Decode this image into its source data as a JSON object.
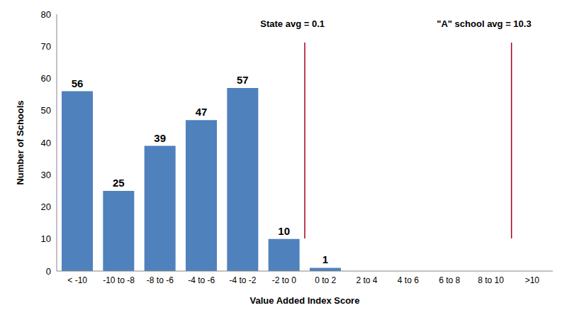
{
  "chart_data": {
    "type": "bar",
    "categories": [
      "< -10",
      "-10 to -8",
      "-8 to -6",
      "-4 to -6",
      "-4 to -2",
      "-2 to 0",
      "0 to 2",
      "2 to 4",
      "4 to 6",
      "6 to 8",
      "8 to 10",
      ">10"
    ],
    "values": [
      56,
      25,
      39,
      47,
      57,
      10,
      1,
      0,
      0,
      0,
      0,
      0
    ],
    "color": "#4f81bd",
    "ylim": [
      0,
      80
    ],
    "yticks": [
      0,
      10,
      20,
      30,
      40,
      50,
      60,
      70,
      80
    ],
    "xlabel": "Value Added Index Score",
    "ylabel": "Number of Schools",
    "data_labels": true,
    "grid": false,
    "annotations": [
      {
        "text": "State avg = 0.1",
        "category": "0 to 2",
        "color": "#a50021"
      },
      {
        "text": "\"A\" school avg = 10.3",
        "category": ">10",
        "color": "#a50021"
      }
    ]
  }
}
